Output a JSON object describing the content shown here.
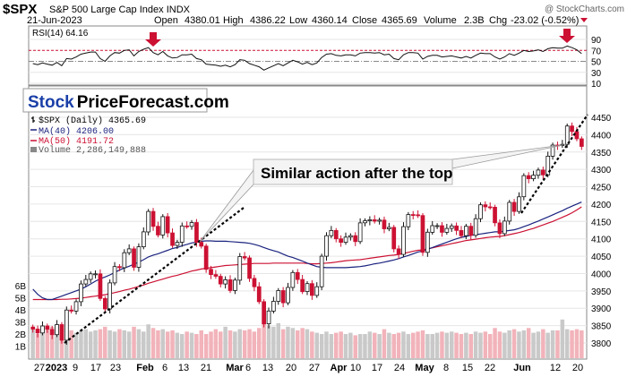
{
  "header": {
    "symbol": "$SPX",
    "name": "S&P 500 Large Cap Index",
    "exchange": "INDX",
    "watermark": "@ StockCharts.com",
    "date": "21-Jun-2023",
    "open_label": "Open",
    "open": "4380.01",
    "high_label": "High",
    "high": "4386.22",
    "low_label": "Low",
    "low": "4360.14",
    "close_label": "Close",
    "close": "4365.69",
    "volume_label": "Volume",
    "volume": "2.3B",
    "chg_label": "Chg",
    "chg": "-23.02 (-0.52%)"
  },
  "logo": {
    "part1": "Stock",
    "part2": "PriceForecast.com"
  },
  "rsi_panel": {
    "label": "RSI(14) 64.16",
    "ticks": [
      90,
      70,
      50,
      30,
      10
    ]
  },
  "legend": {
    "price": "$SPX (Daily) 4365.69",
    "ma40": "MA(40) 4206.00",
    "ma50": "MA(50) 4191.72",
    "volume": "Volume 2,286,149,888"
  },
  "annotation": "Similar action after the top",
  "colors": {
    "up": "#ffffff",
    "down": "#cc1133",
    "ma40": "#1a237e",
    "ma50": "#cc1133",
    "arrow": "#cc1133",
    "logo_blue": "#1a3fa8",
    "volume": "#f4b6bd"
  },
  "chart_data": {
    "type": "candlestick",
    "price_ticks": [
      4450,
      4400,
      4350,
      4300,
      4250,
      4200,
      4150,
      4100,
      4050,
      4000,
      3950,
      3900,
      3850,
      3800
    ],
    "volume_ticks": [
      "6B",
      "5B",
      "4B",
      "3B",
      "2B",
      "1B"
    ],
    "x_ticks": [
      {
        "label": "27",
        "bold": false
      },
      {
        "label": "2023",
        "bold": true
      },
      {
        "label": "9",
        "bold": false
      },
      {
        "label": "17",
        "bold": false
      },
      {
        "label": "23",
        "bold": false
      },
      {
        "label": "Feb",
        "bold": true
      },
      {
        "label": "6",
        "bold": false
      },
      {
        "label": "13",
        "bold": false
      },
      {
        "label": "21",
        "bold": false
      },
      {
        "label": "Mar",
        "bold": true
      },
      {
        "label": "6",
        "bold": false
      },
      {
        "label": "13",
        "bold": false
      },
      {
        "label": "20",
        "bold": false
      },
      {
        "label": "27",
        "bold": false
      },
      {
        "label": "Apr",
        "bold": true
      },
      {
        "label": "10",
        "bold": false
      },
      {
        "label": "17",
        "bold": false
      },
      {
        "label": "24",
        "bold": false
      },
      {
        "label": "May",
        "bold": true
      },
      {
        "label": "8",
        "bold": false
      },
      {
        "label": "15",
        "bold": false
      },
      {
        "label": "22",
        "bold": false
      },
      {
        "label": "Jun",
        "bold": true
      },
      {
        "label": "12",
        "bold": false
      },
      {
        "label": "20",
        "bold": false
      }
    ],
    "closes": [
      3840,
      3829,
      3849,
      3839,
      3824,
      3853,
      3808,
      3895,
      3892,
      3919,
      3970,
      3983,
      3999,
      3999,
      3928,
      3898,
      3973,
      4020,
      4017,
      4060,
      4071,
      4018,
      4077,
      4120,
      4179,
      4136,
      4111,
      4164,
      4117,
      4081,
      4090,
      4137,
      4136,
      4147,
      4090,
      4079,
      4012,
      3997,
      3992,
      3970,
      3982,
      3951,
      3981,
      4049,
      4045,
      3986,
      3962,
      3919,
      3855,
      3892,
      3920,
      3951,
      3916,
      3960,
      4003,
      3983,
      3948,
      3971,
      3937,
      3962,
      4050,
      4109,
      4124,
      4100,
      4090,
      4105,
      4109,
      4092,
      4146,
      4152,
      4155,
      4151,
      4154,
      4129,
      4133,
      4071,
      4055,
      4135,
      4170,
      4169,
      4167,
      4061,
      4119,
      4138,
      4138,
      4119,
      4130,
      4137,
      4124,
      4109,
      4136,
      4110,
      4158,
      4198,
      4192,
      4191,
      4146,
      4115,
      4151,
      4205,
      4179,
      4221,
      4282,
      4273,
      4283,
      4298,
      4284,
      4338,
      4370,
      4369,
      4372,
      4425,
      4409,
      4388,
      4366
    ],
    "ma40": [
      3955,
      3940,
      3930,
      3925,
      3925,
      3930,
      3935,
      3940,
      3945,
      3950,
      3955,
      3962,
      3970,
      3978,
      3985,
      3990,
      3996,
      4003,
      4010,
      4016,
      4021,
      4027,
      4033,
      4040,
      4048,
      4053,
      4057,
      4062,
      4067,
      4072,
      4075,
      4080,
      4084,
      4088,
      4091,
      4093,
      4094,
      4094,
      4093,
      4093,
      4093,
      4092,
      4091,
      4090,
      4089,
      4087,
      4084,
      4080,
      4075,
      4070,
      4066,
      4062,
      4056,
      4050,
      4046,
      4041,
      4036,
      4030,
      4025,
      4020,
      4018,
      4017,
      4017,
      4017,
      4017,
      4017,
      4018,
      4019,
      4020,
      4022,
      4025,
      4028,
      4030,
      4033,
      4036,
      4039,
      4043,
      4048,
      4052,
      4057,
      4062,
      4065,
      4070,
      4075,
      4080,
      4085,
      4090,
      4095,
      4100,
      4104,
      4107,
      4110,
      4112,
      4114,
      4116,
      4118,
      4120,
      4120,
      4122,
      4124,
      4126,
      4130,
      4135,
      4140,
      4146,
      4151,
      4157,
      4163,
      4169,
      4175,
      4181,
      4188,
      4194,
      4200,
      4206
    ],
    "ma50": [
      3925,
      3925,
      3925,
      3925,
      3925,
      3925,
      3926,
      3926,
      3927,
      3928,
      3929,
      3931,
      3933,
      3935,
      3937,
      3939,
      3942,
      3945,
      3948,
      3952,
      3955,
      3959,
      3963,
      3967,
      3972,
      3976,
      3980,
      3984,
      3988,
      3992,
      3995,
      3999,
      4003,
      4007,
      4010,
      4013,
      4015,
      4017,
      4019,
      4021,
      4023,
      4024,
      4025,
      4026,
      4027,
      4028,
      4029,
      4029,
      4029,
      4029,
      4030,
      4030,
      4030,
      4030,
      4030,
      4030,
      4030,
      4029,
      4028,
      4028,
      4029,
      4030,
      4031,
      4033,
      4035,
      4037,
      4038,
      4039,
      4040,
      4042,
      4044,
      4046,
      4048,
      4050,
      4052,
      4053,
      4055,
      4058,
      4061,
      4064,
      4067,
      4068,
      4071,
      4074,
      4077,
      4080,
      4083,
      4086,
      4089,
      4092,
      4095,
      4097,
      4099,
      4101,
      4103,
      4105,
      4106,
      4107,
      4109,
      4112,
      4115,
      4118,
      4122,
      4126,
      4130,
      4135,
      4140,
      4145,
      4150,
      4156,
      4162,
      4168,
      4175,
      4183,
      4192
    ],
    "volume_billions": [
      2.6,
      2.0,
      2.1,
      2.3,
      2.6,
      2.8,
      2.4,
      2.7,
      2.3,
      2.1,
      2.3,
      2.4,
      2.2,
      2.3,
      2.4,
      2.6,
      2.3,
      2.2,
      2.4,
      2.3,
      2.2,
      2.6,
      2.4,
      2.2,
      2.8,
      2.5,
      2.3,
      2.4,
      2.2,
      2.3,
      2.1,
      2.0,
      2.2,
      2.1,
      2.0,
      2.3,
      2.0,
      2.2,
      2.4,
      2.2,
      2.6,
      2.3,
      2.2,
      2.4,
      2.3,
      2.4,
      2.2,
      2.5,
      3.3,
      2.7,
      2.6,
      2.9,
      2.4,
      2.6,
      2.5,
      2.3,
      2.5,
      2.4,
      2.2,
      2.1,
      2.0,
      2.2,
      2.0,
      2.1,
      2.2,
      2.0,
      2.1,
      1.9,
      2.0,
      2.0,
      2.2,
      2.1,
      2.0,
      2.4,
      2.1,
      2.0,
      2.1,
      2.2,
      2.0,
      2.1,
      2.2,
      2.3,
      2.0,
      2.0,
      2.1,
      2.2,
      2.1,
      2.2,
      2.1,
      2.0,
      2.1,
      2.0,
      2.2,
      2.1,
      2.2,
      2.0,
      2.5,
      2.2,
      2.1,
      2.3,
      2.4,
      2.2,
      2.3,
      2.5,
      2.1,
      2.2,
      2.4,
      2.1,
      2.3,
      2.3,
      3.2,
      2.4,
      2.3,
      2.4,
      2.3
    ],
    "rsi": [
      46,
      44,
      47,
      45,
      43,
      48,
      42,
      55,
      54,
      58,
      63,
      65,
      67,
      67,
      55,
      50,
      60,
      66,
      65,
      70,
      71,
      60,
      68,
      72,
      75,
      66,
      62,
      68,
      60,
      56,
      57,
      62,
      62,
      63,
      55,
      53,
      45,
      44,
      43,
      41,
      43,
      40,
      44,
      53,
      52,
      46,
      43,
      40,
      34,
      38,
      42,
      46,
      42,
      47,
      52,
      49,
      45,
      48,
      44,
      47,
      57,
      63,
      64,
      61,
      60,
      62,
      62,
      60,
      65,
      66,
      66,
      65,
      66,
      62,
      63,
      55,
      53,
      62,
      66,
      66,
      65,
      54,
      59,
      61,
      61,
      58,
      59,
      60,
      58,
      56,
      59,
      56,
      61,
      65,
      64,
      64,
      58,
      54,
      58,
      64,
      61,
      65,
      70,
      68,
      69,
      71,
      68,
      73,
      75,
      74,
      74,
      78,
      75,
      71,
      64
    ]
  }
}
